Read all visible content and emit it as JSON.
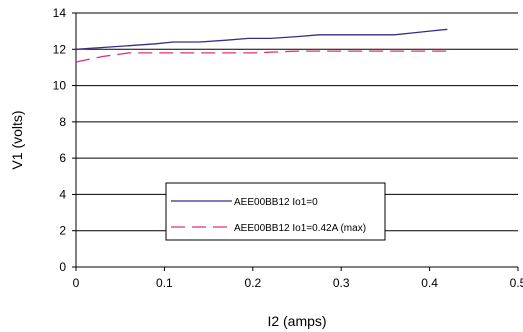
{
  "chart_data": {
    "type": "line",
    "xlabel": "I2 (amps)",
    "ylabel": "V1 (volts)",
    "xlim": [
      0,
      0.5
    ],
    "ylim": [
      0,
      14
    ],
    "x_ticks": [
      "0",
      "0.1",
      "0.2",
      "0.3",
      "0.4",
      "0.5"
    ],
    "y_ticks": [
      "0",
      "2",
      "4",
      "6",
      "8",
      "10",
      "12",
      "14"
    ],
    "grid": "horizontal",
    "legend_position": "center",
    "series": [
      {
        "name": "AEE00BB12  Io1=0",
        "color": "#3b2a8c",
        "style": "solid",
        "x": [
          0,
          0.03,
          0.06,
          0.09,
          0.11,
          0.14,
          0.17,
          0.195,
          0.22,
          0.25,
          0.275,
          0.3,
          0.33,
          0.36,
          0.38,
          0.4,
          0.42
        ],
        "y": [
          12.0,
          12.1,
          12.2,
          12.3,
          12.4,
          12.4,
          12.5,
          12.6,
          12.6,
          12.7,
          12.8,
          12.8,
          12.8,
          12.8,
          12.9,
          13.0,
          13.1
        ]
      },
      {
        "name": "AEE00BB12  Io1=0.42A (max)",
        "color": "#e0307a",
        "style": "dashed",
        "x": [
          0,
          0.03,
          0.06,
          0.1,
          0.15,
          0.2,
          0.25,
          0.3,
          0.35,
          0.4,
          0.42
        ],
        "y": [
          11.3,
          11.6,
          11.8,
          11.8,
          11.8,
          11.8,
          11.9,
          11.9,
          11.9,
          11.9,
          11.9
        ]
      }
    ]
  }
}
